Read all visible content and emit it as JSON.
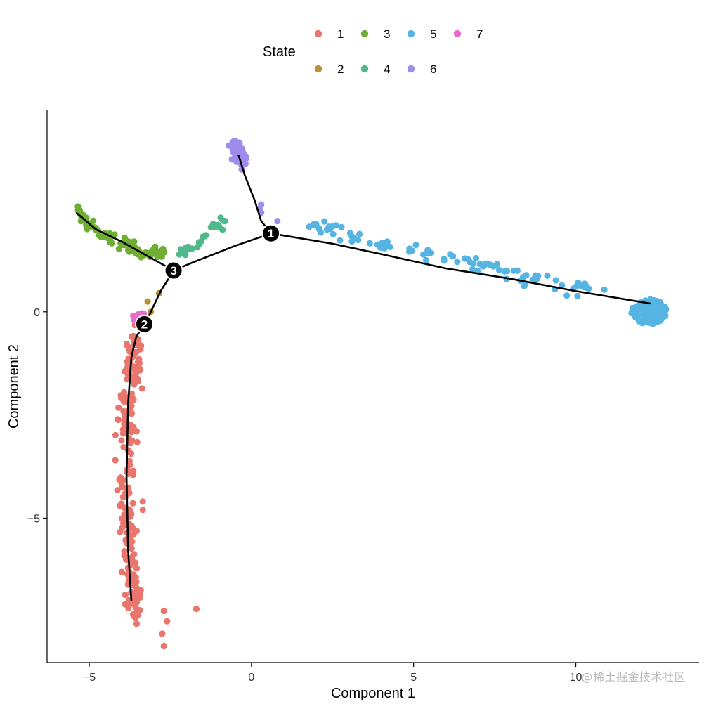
{
  "chart_data": {
    "type": "scatter",
    "xlabel": "Component 1",
    "ylabel": "Component 2",
    "xlim": [
      -6.3,
      13.8
    ],
    "ylim": [
      -8.5,
      4.9
    ],
    "xticks": [
      -5,
      0,
      5,
      10
    ],
    "yticks": [
      0,
      -5
    ],
    "xtick_labels": [
      "−5",
      "0",
      "5",
      "10"
    ],
    "ytick_labels": [
      "0",
      "−5"
    ],
    "grid": false,
    "legend": {
      "title": "State",
      "placement": "top",
      "entries": [
        {
          "label": "1",
          "color": "#E8766D"
        },
        {
          "label": "2",
          "color": "#B7922F"
        },
        {
          "label": "3",
          "color": "#6EAE34"
        },
        {
          "label": "4",
          "color": "#50B98B"
        },
        {
          "label": "5",
          "color": "#56B4E3"
        },
        {
          "label": "6",
          "color": "#9E8BEB"
        },
        {
          "label": "7",
          "color": "#E96AC8"
        }
      ]
    },
    "trajectory": [
      [
        [
          12.3,
          0.2
        ],
        [
          10.0,
          0.5
        ],
        [
          8.0,
          0.8
        ],
        [
          6.0,
          1.05
        ],
        [
          4.0,
          1.4
        ],
        [
          2.5,
          1.65
        ],
        [
          0.6,
          1.9
        ]
      ],
      [
        [
          0.6,
          1.9
        ],
        [
          0.3,
          2.2
        ],
        [
          0.1,
          2.7
        ],
        [
          -0.2,
          3.3
        ],
        [
          -0.4,
          3.8
        ]
      ],
      [
        [
          0.6,
          1.9
        ],
        [
          -0.5,
          1.6
        ],
        [
          -1.8,
          1.2
        ],
        [
          -2.4,
          1.0
        ]
      ],
      [
        [
          -5.4,
          2.4
        ],
        [
          -4.8,
          2.0
        ],
        [
          -4.0,
          1.7
        ],
        [
          -3.2,
          1.35
        ],
        [
          -2.4,
          1.0
        ]
      ],
      [
        [
          -2.4,
          1.0
        ],
        [
          -2.8,
          0.5
        ],
        [
          -3.1,
          0.0
        ],
        [
          -3.3,
          -0.3
        ]
      ],
      [
        [
          -3.3,
          -0.3
        ],
        [
          -3.55,
          -0.6
        ],
        [
          -3.7,
          -1.1
        ],
        [
          -3.8,
          -2.2
        ],
        [
          -3.85,
          -4.0
        ],
        [
          -3.8,
          -5.8
        ],
        [
          -3.7,
          -7.0
        ]
      ]
    ],
    "branch_points": [
      {
        "label": "1",
        "x": 0.6,
        "y": 1.9
      },
      {
        "label": "2",
        "x": -3.3,
        "y": -0.3
      },
      {
        "label": "3",
        "x": -2.4,
        "y": 1.0
      }
    ],
    "state_regions": [
      {
        "state": "1",
        "n": 240,
        "path": [
          [
            -3.55,
            -0.6
          ],
          [
            -3.75,
            -1.5
          ],
          [
            -3.85,
            -3.0
          ],
          [
            -3.85,
            -5.0
          ],
          [
            -3.7,
            -6.5
          ],
          [
            -3.6,
            -7.5
          ]
        ],
        "spread": [
          0.22,
          0.2
        ],
        "extra": [
          [
            -1.7,
            -7.2
          ],
          [
            -2.7,
            -8.1
          ],
          [
            -2.75,
            -7.8
          ],
          [
            -3.35,
            -4.8
          ],
          [
            -3.35,
            -4.6
          ],
          [
            -2.7,
            -7.25
          ],
          [
            -2.6,
            -7.5
          ]
        ]
      },
      {
        "state": "2",
        "n": 0,
        "path": [],
        "spread": [
          0,
          0
        ],
        "extra": [
          [
            -3.2,
            0.25
          ],
          [
            -2.85,
            0.45
          ],
          [
            -3.1,
            0.0
          ]
        ]
      },
      {
        "state": "3",
        "n": 90,
        "path": [
          [
            -5.4,
            2.45
          ],
          [
            -4.8,
            2.0
          ],
          [
            -4.0,
            1.65
          ],
          [
            -3.3,
            1.45
          ],
          [
            -2.7,
            1.4
          ]
        ],
        "spread": [
          0.1,
          0.12
        ],
        "extra": [
          [
            -5.35,
            2.55
          ],
          [
            -5.2,
            2.35
          ],
          [
            -5.25,
            2.2
          ]
        ]
      },
      {
        "state": "4",
        "n": 26,
        "path": [
          [
            -2.4,
            1.4
          ],
          [
            -1.8,
            1.55
          ],
          [
            -1.1,
            2.0
          ],
          [
            -0.9,
            2.2
          ]
        ],
        "spread": [
          0.12,
          0.08
        ],
        "extra": [
          [
            -0.95,
            2.28
          ],
          [
            -1.25,
            2.05
          ],
          [
            -1.6,
            1.65
          ]
        ]
      },
      {
        "state": "5",
        "n": 95,
        "path": [
          [
            1.9,
            2.1
          ],
          [
            3.5,
            1.7
          ],
          [
            5.0,
            1.5
          ],
          [
            6.5,
            1.25
          ],
          [
            8.0,
            0.95
          ],
          [
            9.5,
            0.65
          ],
          [
            10.8,
            0.5
          ]
        ],
        "spread": [
          0.18,
          0.16
        ],
        "extra": [
          [
            12.3,
            0.3
          ],
          [
            12.2,
            0.25
          ],
          [
            11.95,
            0.18
          ]
        ],
        "cluster": {
          "x": 12.25,
          "y": 0.0,
          "rx": 0.55,
          "ry": 0.3,
          "n": 130
        }
      },
      {
        "state": "6",
        "n": 60,
        "path": [
          [
            -0.5,
            4.1
          ],
          [
            -0.35,
            3.85
          ],
          [
            -0.3,
            3.65
          ]
        ],
        "spread": [
          0.14,
          0.13
        ],
        "extra": [
          [
            -0.3,
            3.55
          ],
          [
            -0.3,
            3.45
          ],
          [
            0.3,
            2.6
          ],
          [
            0.3,
            2.4
          ],
          [
            0.25,
            2.5
          ],
          [
            0.8,
            2.2
          ]
        ]
      },
      {
        "state": "7",
        "n": 20,
        "path": [
          [
            -3.6,
            -0.15
          ],
          [
            -3.35,
            -0.1
          ]
        ],
        "spread": [
          0.12,
          0.08
        ],
        "extra": []
      }
    ]
  },
  "watermark": "@稀土掘金技术社区"
}
